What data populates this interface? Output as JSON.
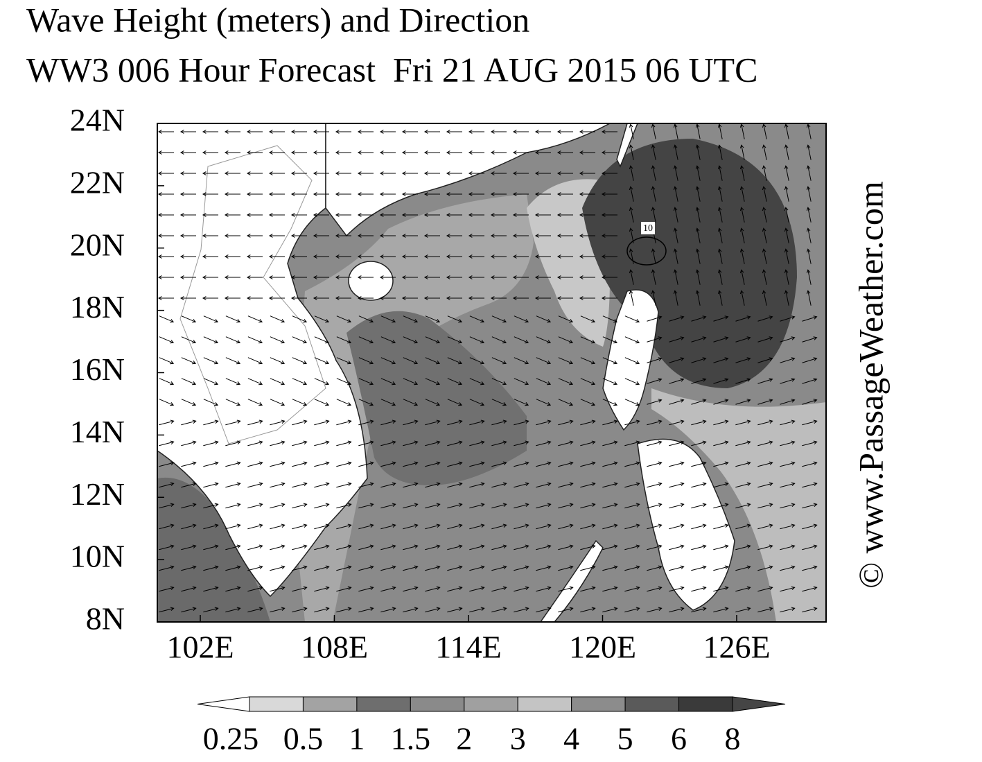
{
  "title": "Wave Height (meters) and Direction",
  "subtitle": "WW3 006 Hour Forecast  Fri 21 AUG 2015 06 UTC",
  "lat_labels": [
    "24N",
    "22N",
    "20N",
    "18N",
    "16N",
    "14N",
    "12N",
    "10N",
    "8N"
  ],
  "lon_labels": [
    "102E",
    "108E",
    "114E",
    "120E",
    "126E"
  ],
  "contour_label": "10",
  "watermark": "© www.PassageWeather.com",
  "colorbar": {
    "levels": [
      0.25,
      0.5,
      1,
      1.5,
      2,
      3,
      4,
      5,
      6,
      8
    ],
    "colors": [
      "#ffffff",
      "#d9d9d9",
      "#a3a3a3",
      "#6e6e6e",
      "#8a8a8a",
      "#a0a0a0",
      "#c4c4c4",
      "#8c8c8c",
      "#5a5a5a",
      "#3a3a3a",
      "#454545"
    ]
  }
}
